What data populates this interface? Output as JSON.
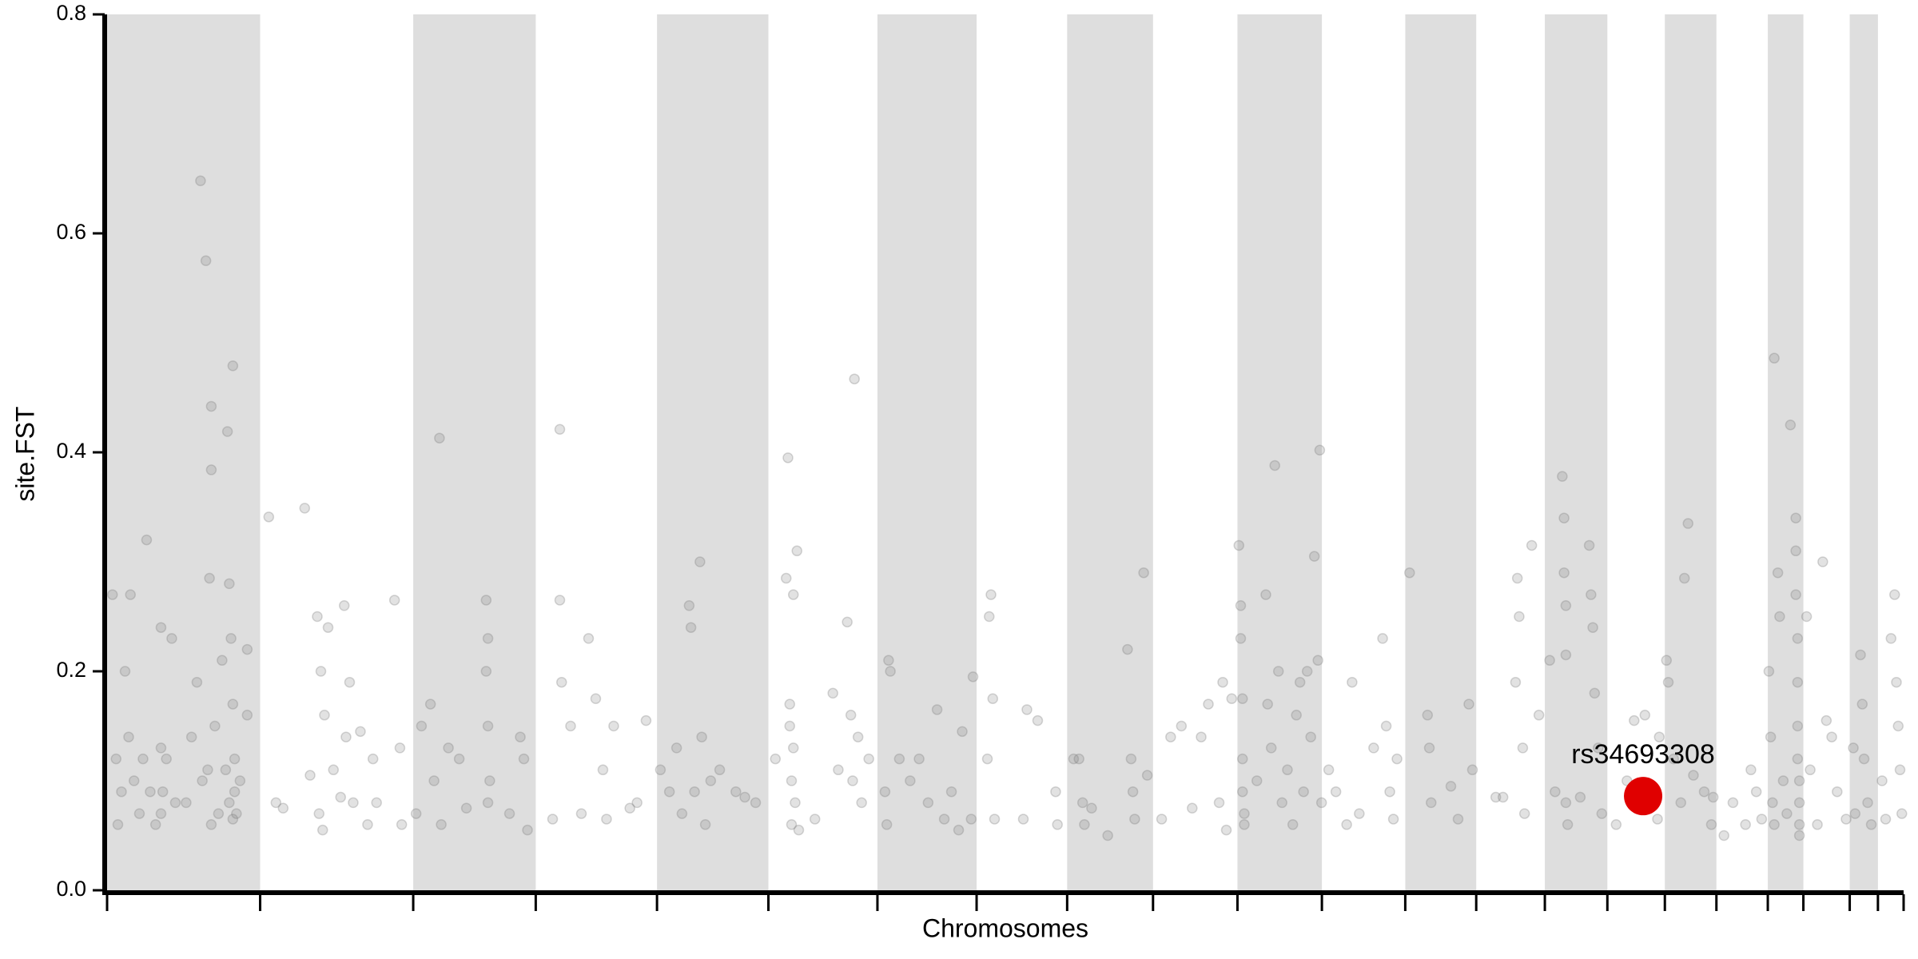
{
  "chart_data": {
    "type": "scatter",
    "xlabel": "Chromosomes",
    "ylabel": "site.FST",
    "xlim": [
      0,
      1000
    ],
    "ylim": [
      0,
      0.8
    ],
    "yticks": [
      {
        "value": 0,
        "label": "0.0"
      },
      0.2,
      0.4,
      0.6,
      0.8
    ],
    "chromosome_bounds": [
      0,
      85.2,
      170.4,
      238.6,
      306.1,
      368.1,
      428.8,
      484,
      534.4,
      582.2,
      629.2,
      676.2,
      722.6,
      762.1,
      800.3,
      835.1,
      867.1,
      895.8,
      924.4,
      944.2,
      970,
      985.7,
      1000
    ],
    "band_color": "#dedede",
    "color": "#7a7a7a",
    "x": [
      3,
      5,
      6,
      8,
      10,
      12,
      13,
      15,
      18,
      20,
      22,
      24,
      27,
      30,
      30,
      30,
      31,
      33,
      36,
      38,
      44,
      47,
      50,
      52,
      53,
      55,
      56,
      57,
      58,
      58,
      58,
      60,
      62,
      64,
      66,
      67,
      68,
      68,
      69,
      70,
      70,
      70,
      71,
      71,
      72,
      74,
      78,
      78,
      90,
      94,
      98,
      110,
      113,
      117,
      118,
      119,
      120,
      121,
      123,
      126,
      130,
      132,
      133,
      135,
      137,
      141,
      145,
      148,
      150,
      160,
      163,
      164,
      172,
      175,
      180,
      182,
      185,
      186,
      190,
      196,
      200,
      211,
      212,
      211,
      212,
      212,
      213,
      224,
      230,
      232,
      234,
      248,
      252,
      252,
      253,
      258,
      264,
      268,
      272,
      276,
      278,
      282,
      291,
      295,
      300,
      308,
      313,
      317,
      320,
      324,
      325,
      327,
      330,
      331,
      333,
      336,
      341,
      350,
      355,
      361,
      372,
      378,
      379,
      380,
      380,
      381,
      381,
      382,
      382,
      383,
      384,
      385,
      394,
      404,
      407,
      412,
      414,
      415,
      416,
      418,
      420,
      424,
      433,
      434,
      435,
      436,
      441,
      447,
      452,
      457,
      462,
      466,
      470,
      474,
      476,
      481,
      482,
      490,
      491,
      492,
      493,
      494,
      510,
      512,
      518,
      528,
      529,
      538,
      541,
      543,
      544,
      548,
      557,
      568,
      570,
      571,
      572,
      577,
      579,
      587,
      592,
      598,
      604,
      609,
      613,
      619,
      621,
      623,
      626,
      630,
      631,
      631,
      632,
      632,
      632,
      633,
      633,
      640,
      645,
      646,
      648,
      650,
      652,
      654,
      657,
      660,
      662,
      664,
      666,
      668,
      670,
      672,
      674,
      675,
      676,
      680,
      684,
      690,
      693,
      697,
      705,
      710,
      712,
      714,
      716,
      718,
      725,
      735,
      736,
      737,
      748,
      752,
      758,
      760,
      773,
      777,
      784,
      785,
      786,
      788,
      789,
      793,
      797,
      803,
      806,
      810,
      811,
      811,
      812,
      812,
      812,
      813,
      820,
      825,
      826,
      827,
      828,
      830,
      832,
      840,
      846,
      850,
      856,
      860,
      863,
      864,
      868,
      869,
      872,
      876,
      878,
      880,
      883,
      889,
      893,
      894,
      900,
      905,
      912,
      915,
      918,
      921,
      925,
      926,
      927,
      928,
      928,
      930,
      931,
      933,
      935,
      937,
      940,
      940,
      940,
      941,
      941,
      941,
      941,
      942,
      942,
      942,
      942,
      946,
      948,
      952,
      955,
      957,
      960,
      963,
      968,
      972,
      973,
      976,
      977,
      978,
      980,
      982,
      988,
      990,
      993,
      995,
      996,
      997,
      998,
      999
    ],
    "values": [
      0.27,
      0.12,
      0.06,
      0.09,
      0.2,
      0.14,
      0.27,
      0.1,
      0.07,
      0.12,
      0.32,
      0.09,
      0.06,
      0.24,
      0.13,
      0.07,
      0.09,
      0.12,
      0.23,
      0.08,
      0.08,
      0.14,
      0.19,
      0.648,
      0.1,
      0.575,
      0.11,
      0.285,
      0.06,
      0.442,
      0.384,
      0.15,
      0.07,
      0.21,
      0.11,
      0.419,
      0.28,
      0.08,
      0.23,
      0.479,
      0.17,
      0.065,
      0.12,
      0.09,
      0.07,
      0.1,
      0.22,
      0.16,
      0.341,
      0.08,
      0.075,
      0.349,
      0.105,
      0.25,
      0.07,
      0.2,
      0.055,
      0.16,
      0.24,
      0.11,
      0.085,
      0.26,
      0.14,
      0.19,
      0.08,
      0.145,
      0.06,
      0.12,
      0.08,
      0.265,
      0.13,
      0.06,
      0.07,
      0.15,
      0.17,
      0.1,
      0.413,
      0.06,
      0.13,
      0.12,
      0.075,
      0.265,
      0.23,
      0.2,
      0.15,
      0.08,
      0.1,
      0.07,
      0.14,
      0.12,
      0.055,
      0.065,
      0.421,
      0.265,
      0.19,
      0.15,
      0.07,
      0.23,
      0.175,
      0.11,
      0.065,
      0.15,
      0.075,
      0.08,
      0.155,
      0.11,
      0.09,
      0.13,
      0.07,
      0.26,
      0.24,
      0.09,
      0.3,
      0.14,
      0.06,
      0.1,
      0.11,
      0.09,
      0.085,
      0.08,
      0.12,
      0.285,
      0.395,
      0.17,
      0.15,
      0.1,
      0.06,
      0.27,
      0.13,
      0.08,
      0.31,
      0.055,
      0.065,
      0.18,
      0.11,
      0.245,
      0.16,
      0.1,
      0.467,
      0.14,
      0.08,
      0.12,
      0.09,
      0.06,
      0.21,
      0.2,
      0.12,
      0.1,
      0.12,
      0.08,
      0.165,
      0.065,
      0.09,
      0.055,
      0.145,
      0.065,
      0.195,
      0.12,
      0.25,
      0.27,
      0.175,
      0.065,
      0.065,
      0.165,
      0.155,
      0.09,
      0.06,
      0.12,
      0.12,
      0.08,
      0.06,
      0.075,
      0.05,
      0.22,
      0.12,
      0.09,
      0.065,
      0.29,
      0.105,
      0.065,
      0.14,
      0.15,
      0.075,
      0.14,
      0.17,
      0.08,
      0.19,
      0.055,
      0.175,
      0.315,
      0.26,
      0.23,
      0.175,
      0.12,
      0.09,
      0.07,
      0.06,
      0.1,
      0.27,
      0.17,
      0.13,
      0.388,
      0.2,
      0.08,
      0.11,
      0.06,
      0.16,
      0.19,
      0.09,
      0.2,
      0.14,
      0.305,
      0.21,
      0.402,
      0.08,
      0.11,
      0.09,
      0.06,
      0.19,
      0.07,
      0.13,
      0.23,
      0.15,
      0.09,
      0.065,
      0.12,
      0.29,
      0.16,
      0.13,
      0.08,
      0.095,
      0.065,
      0.17,
      0.11,
      0.085,
      0.085,
      0.19,
      0.285,
      0.25,
      0.13,
      0.07,
      0.315,
      0.16,
      0.21,
      0.09,
      0.378,
      0.34,
      0.29,
      0.26,
      0.215,
      0.08,
      0.06,
      0.085,
      0.315,
      0.27,
      0.24,
      0.18,
      0.13,
      0.07,
      0.06,
      0.1,
      0.155,
      0.16,
      0.08,
      0.065,
      0.14,
      0.21,
      0.19,
      0.12,
      0.08,
      0.285,
      0.335,
      0.105,
      0.09,
      0.06,
      0.085,
      0.05,
      0.08,
      0.06,
      0.11,
      0.09,
      0.065,
      0.2,
      0.14,
      0.08,
      0.06,
      0.486,
      0.29,
      0.25,
      0.1,
      0.07,
      0.425,
      0.34,
      0.31,
      0.27,
      0.23,
      0.19,
      0.15,
      0.12,
      0.1,
      0.08,
      0.06,
      0.05,
      0.25,
      0.11,
      0.06,
      0.3,
      0.155,
      0.14,
      0.09,
      0.065,
      0.13,
      0.07,
      0.215,
      0.17,
      0.12,
      0.08,
      0.06,
      0.1,
      0.065,
      0.23,
      0.27,
      0.19,
      0.15,
      0.11,
      0.07
    ],
    "highlight": {
      "label": "rs34693308",
      "x": 855,
      "value": 0.086,
      "color": "#e00000"
    }
  }
}
